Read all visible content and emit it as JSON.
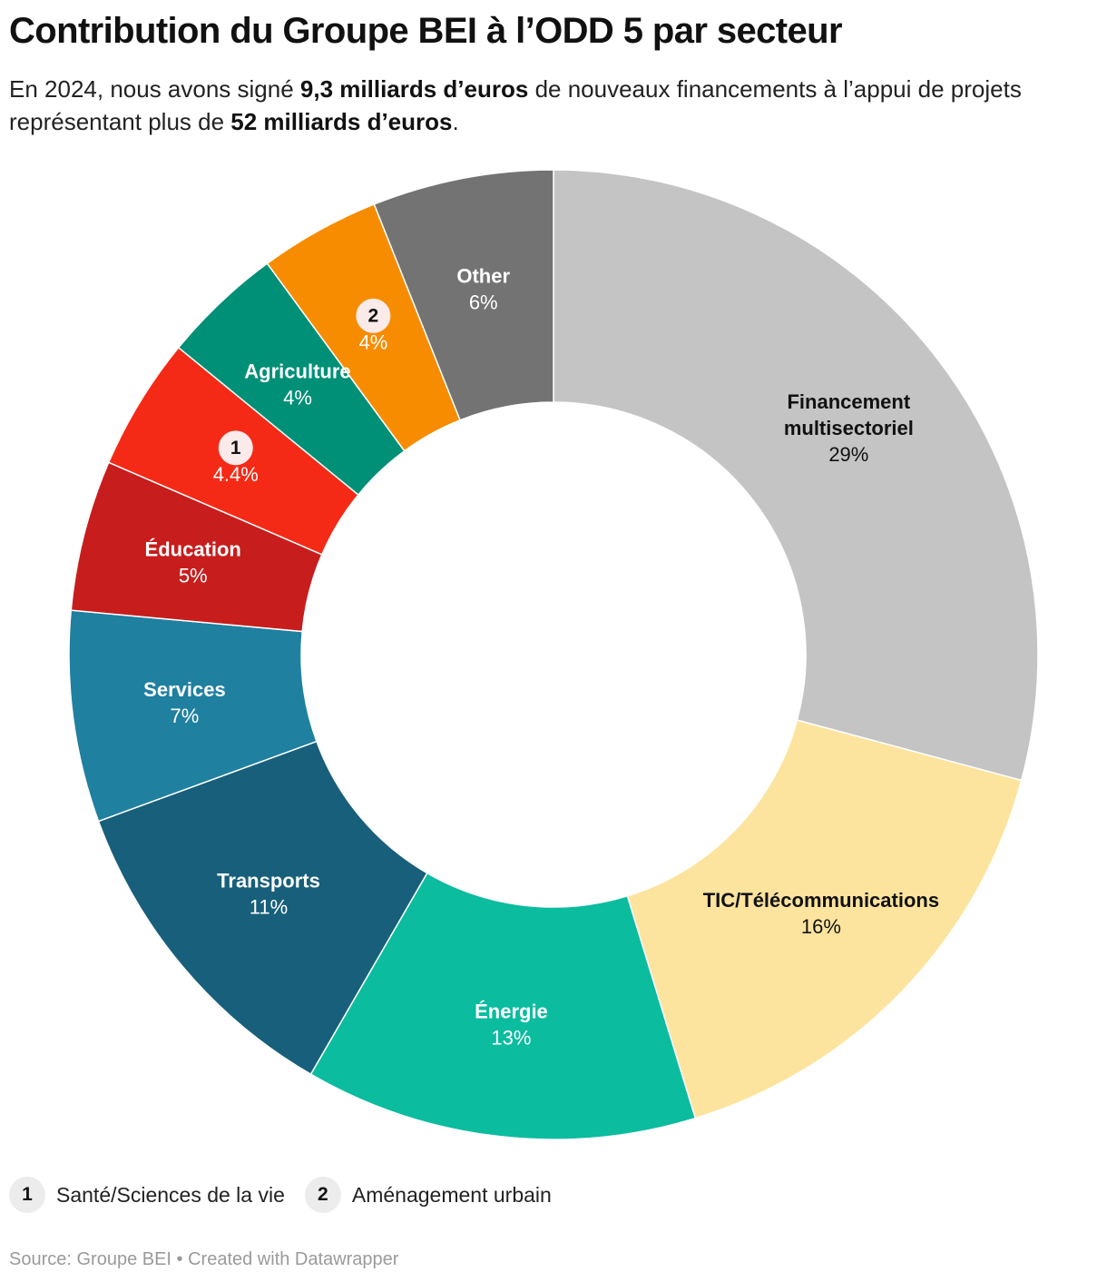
{
  "title": "Contribution du Groupe BEI à l’ODD 5 par secteur",
  "subtitle": {
    "part1": "En 2024, nous avons signé ",
    "bold1": "9,3 milliards d’euros",
    "part2": " de nouveaux financements à l’appui de projets représentant plus de ",
    "bold2": "52 milliards d’euros",
    "part3": "."
  },
  "chart_data": {
    "type": "pie",
    "variant": "donut",
    "slices": [
      {
        "label": "Financement multisectoriel",
        "display_label": [
          "Financement",
          "multisectoriel"
        ],
        "value": 29,
        "value_label": "29%",
        "color": "#c4c4c4",
        "text_color": "#111111"
      },
      {
        "label": "TIC/Télécommunications",
        "display_label": [
          "TIC/Télécommunications"
        ],
        "value": 16,
        "value_label": "16%",
        "color": "#fde49e",
        "text_color": "#111111"
      },
      {
        "label": "Énergie",
        "display_label": [
          "Énergie"
        ],
        "value": 13,
        "value_label": "13%",
        "color": "#0bbc9f",
        "text_color": "#ffffff"
      },
      {
        "label": "Transports",
        "display_label": [
          "Transports"
        ],
        "value": 11,
        "value_label": "11%",
        "color": "#175f7a",
        "text_color": "#ffffff"
      },
      {
        "label": "Services",
        "display_label": [
          "Services"
        ],
        "value": 7,
        "value_label": "7%",
        "color": "#1f80a0",
        "text_color": "#ffffff"
      },
      {
        "label": "Éducation",
        "display_label": [
          "Éducation"
        ],
        "value": 5,
        "value_label": "5%",
        "color": "#c81d1d",
        "text_color": "#ffffff"
      },
      {
        "label": "Santé/Sciences de la vie",
        "marker": "1",
        "value": 4.4,
        "value_label": "4.4%",
        "color": "#f52a16",
        "text_color": "#ffffff"
      },
      {
        "label": "Agriculture",
        "display_label": [
          "Agriculture"
        ],
        "value": 4,
        "value_label": "4%",
        "color": "#008f77",
        "text_color": "#ffffff"
      },
      {
        "label": "Aménagement urbain",
        "marker": "2",
        "value": 4,
        "value_label": "4%",
        "color": "#f78c00",
        "text_color": "#ffffff"
      },
      {
        "label": "Other",
        "display_label": [
          "Other"
        ],
        "value": 6,
        "value_label": "6%",
        "color": "#737373",
        "text_color": "#ffffff"
      }
    ]
  },
  "legend": [
    {
      "marker": "1",
      "label": "Santé/Sciences de la vie"
    },
    {
      "marker": "2",
      "label": "Aménagement urbain"
    }
  ],
  "source": "Source: Groupe BEI • Created with Datawrapper"
}
